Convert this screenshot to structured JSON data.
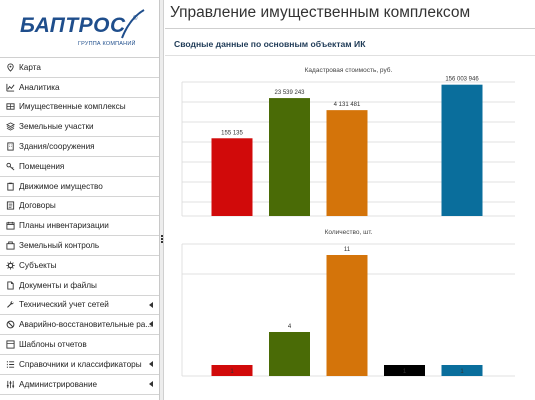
{
  "brand": {
    "name": "БАПТРОС",
    "tagline": "ГРУППА КОМПАНИЙ",
    "reg": "®"
  },
  "colors": {
    "brand": "#1f4e8c",
    "red": "#d10a0a",
    "green": "#4a6b06",
    "orange": "#d4740a",
    "blue": "#0a6e9c"
  },
  "sidebar": {
    "items": [
      {
        "label": "Карта",
        "icon": "map-pin-icon",
        "has_submenu": false
      },
      {
        "label": "Аналитика",
        "icon": "chart-icon",
        "has_submenu": false
      },
      {
        "label": "Имущественные комплексы",
        "icon": "complex-icon",
        "has_submenu": false
      },
      {
        "label": "Земельные участки",
        "icon": "layers-icon",
        "has_submenu": false
      },
      {
        "label": "Здания/сооружения",
        "icon": "building-icon",
        "has_submenu": false
      },
      {
        "label": "Помещения",
        "icon": "key-icon",
        "has_submenu": false
      },
      {
        "label": "Движимое имущество",
        "icon": "clipboard-icon",
        "has_submenu": false
      },
      {
        "label": "Договоры",
        "icon": "document-icon",
        "has_submenu": false
      },
      {
        "label": "Планы инвентаризации",
        "icon": "calendar-icon",
        "has_submenu": false
      },
      {
        "label": "Земельный контроль",
        "icon": "land-control-icon",
        "has_submenu": false
      },
      {
        "label": "Субъекты",
        "icon": "gear-icon",
        "has_submenu": false
      },
      {
        "label": "Документы и файлы",
        "icon": "file-icon",
        "has_submenu": false
      },
      {
        "label": "Технический учет сетей",
        "icon": "wrench-icon",
        "has_submenu": true
      },
      {
        "label": "Аварийно-восстановительные ра...",
        "icon": "no-entry-icon",
        "has_submenu": true
      },
      {
        "label": "Шаблоны отчетов",
        "icon": "template-icon",
        "has_submenu": false
      },
      {
        "label": "Справочники и классификаторы",
        "icon": "list-icon",
        "has_submenu": true
      },
      {
        "label": "Администрирование",
        "icon": "sliders-icon",
        "has_submenu": true
      }
    ]
  },
  "main": {
    "title": "Управление имущественным комплексом",
    "section_title": "Сводные данные по основным объектам ИК"
  },
  "chart_data": [
    {
      "type": "bar",
      "title": "Кадастровая стоимость, руб.",
      "ylim": [
        0,
        160000000
      ],
      "grid": true,
      "bars": [
        {
          "value": 155135,
          "label": "155 135",
          "color": "#d10a0a",
          "height_ratio": 0.58
        },
        {
          "value": 23539243,
          "label": "23 539 243",
          "color": "#4a6b06",
          "height_ratio": 0.88
        },
        {
          "value": 4131481,
          "label": "4 131 481",
          "color": "#d4740a",
          "height_ratio": 0.79
        },
        {
          "value": null,
          "label": "",
          "color": "#000000",
          "height_ratio": 0
        },
        {
          "value": 156003946,
          "label": "156 003 946",
          "color": "#0a6e9c",
          "height_ratio": 0.98
        }
      ]
    },
    {
      "type": "bar",
      "title": "Количество, шт.",
      "ylim": [
        0,
        12
      ],
      "grid": true,
      "bars": [
        {
          "value": 1,
          "label": "1",
          "color": "#d10a0a"
        },
        {
          "value": 4,
          "label": "4",
          "color": "#4a6b06"
        },
        {
          "value": 11,
          "label": "11",
          "color": "#d4740a"
        },
        {
          "value": 1,
          "label": "1",
          "color": "#000000"
        },
        {
          "value": 1,
          "label": "1",
          "color": "#0a6e9c"
        }
      ]
    }
  ]
}
